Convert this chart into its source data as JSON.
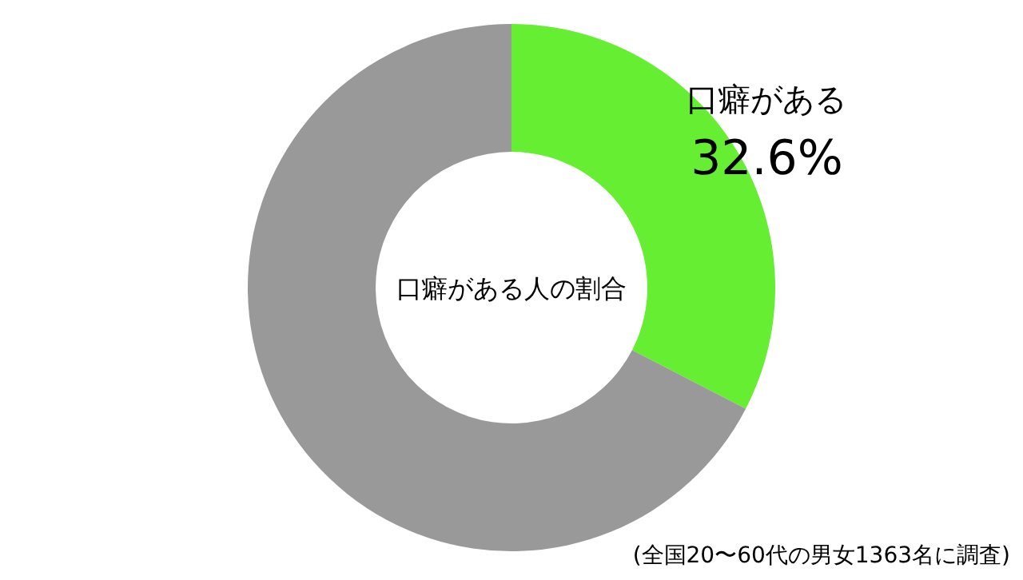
{
  "chart_data": {
    "type": "donut",
    "title": "口癖がある人の割合",
    "categories": [
      "口癖がある",
      null
    ],
    "values": [
      32.6,
      67.4
    ],
    "colors": [
      "#66ee33",
      "#999999"
    ],
    "value_labels": [
      "32.6%",
      null
    ],
    "annotations": [
      "(全国20〜60代の男女1363名に調査)"
    ]
  }
}
